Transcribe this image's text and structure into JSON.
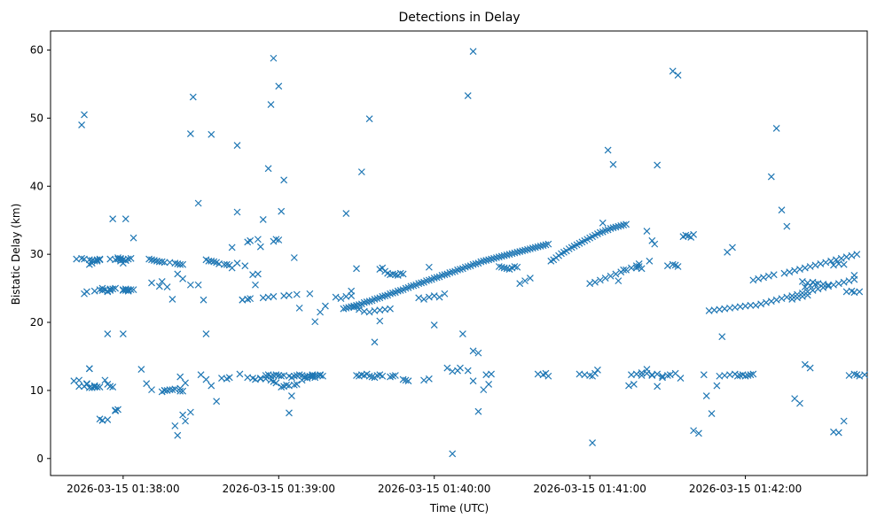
{
  "chart_data": {
    "type": "scatter",
    "title": "Detections in Delay",
    "xlabel": "Time (UTC)",
    "ylabel": "Bistatic Delay (km)",
    "x_tick_labels": [
      "2026-03-15 01:38:00",
      "2026-03-15 01:39:00",
      "2026-03-15 01:40:00",
      "2026-03-15 01:41:00",
      "2026-03-15 01:42:00"
    ],
    "x_tick_values_s": [
      0,
      60,
      120,
      180,
      240
    ],
    "y_ticks": [
      0,
      10,
      20,
      30,
      40,
      50,
      60
    ],
    "xlim_s": [
      -28,
      287
    ],
    "ylim": [
      -2.5,
      62.8
    ],
    "marker": "x",
    "color": "#1f77b4",
    "grid": false,
    "series": [
      {
        "x": [
          -16,
          -15,
          -13,
          -12,
          -10,
          -11,
          -14,
          -9,
          -8,
          -7,
          -6,
          -6,
          -5,
          -4,
          -3,
          -2,
          -1,
          0,
          1,
          2,
          2,
          3,
          4,
          -15,
          -14,
          -13,
          -11,
          -9,
          -8,
          -7,
          -6,
          -5,
          -4,
          -3,
          -2,
          0,
          1,
          0,
          -1,
          10,
          11,
          12,
          13,
          14,
          15,
          16,
          18,
          20,
          21,
          22,
          23,
          -2,
          -1,
          0,
          1,
          2,
          3,
          -19,
          -17,
          -10,
          -12,
          -8,
          -6,
          -3,
          0,
          1,
          2,
          -18,
          -16,
          -15,
          -13,
          -12,
          -10,
          -9,
          -5,
          0,
          1,
          -11,
          -9,
          -8,
          -5,
          -3,
          11,
          14,
          16,
          19,
          20,
          21,
          22,
          23,
          15,
          17,
          19,
          21,
          23,
          26,
          29,
          32,
          33,
          34,
          35,
          36,
          37,
          39,
          40,
          41,
          44,
          45,
          47,
          48,
          50,
          51,
          53,
          16,
          17,
          15,
          18,
          20,
          22,
          23,
          24,
          26,
          26,
          27,
          29,
          31,
          32,
          34,
          36,
          38,
          40,
          41,
          50,
          51,
          52,
          53,
          54,
          55,
          56,
          57,
          58,
          59,
          60,
          61,
          62,
          64,
          65,
          66,
          67,
          68,
          69,
          70,
          71,
          72,
          73,
          74,
          75,
          76,
          77,
          61,
          63,
          65,
          67,
          69,
          73,
          73,
          74,
          53,
          55,
          57,
          58,
          59,
          60,
          62,
          64,
          66,
          70,
          71,
          76,
          46,
          48,
          49,
          54,
          56,
          58,
          62,
          64,
          67,
          72,
          42,
          48,
          49,
          52,
          44,
          57,
          61,
          60,
          58,
          59,
          82,
          84,
          86,
          88,
          89,
          91,
          93,
          95,
          97,
          99,
          101,
          103,
          85,
          86,
          87,
          88,
          89,
          90,
          91,
          92,
          93,
          94,
          95,
          96,
          97,
          98,
          99,
          100,
          101,
          102,
          103,
          104,
          105,
          106,
          107,
          108,
          109,
          110,
          111,
          112,
          113,
          114,
          115,
          116,
          117,
          118,
          119,
          120,
          121,
          122,
          123,
          124,
          125,
          126,
          127,
          128,
          129,
          130,
          131,
          132,
          133,
          134,
          135,
          136,
          137,
          138,
          139,
          140,
          141,
          142,
          143,
          144,
          145,
          146,
          147,
          148,
          149,
          150,
          151,
          152,
          153,
          154,
          155,
          156,
          157,
          158,
          159,
          160,
          161,
          162,
          163,
          164,
          165,
          166,
          167,
          168,
          169,
          170,
          171,
          172,
          173,
          174,
          175,
          176,
          177,
          178,
          179,
          180,
          181,
          182,
          183,
          184,
          185,
          186,
          187,
          188,
          189,
          190,
          191,
          192,
          193,
          194,
          90,
          91,
          92,
          93,
          94,
          95,
          96,
          97,
          98,
          99,
          100,
          99,
          100,
          101,
          102,
          103,
          104,
          105,
          106,
          107,
          108,
          103,
          104,
          105,
          108,
          109,
          110,
          116,
          118,
          114,
          116,
          118,
          120,
          125,
          127,
          129,
          131,
          133,
          135,
          137,
          139,
          141,
          145,
          146,
          147,
          148,
          149,
          150,
          151,
          152,
          153,
          155,
          157,
          160,
          162,
          163,
          164,
          176,
          178,
          180,
          181,
          182,
          180,
          182,
          184,
          186,
          188,
          190,
          192,
          194,
          196,
          198,
          199,
          196,
          198,
          200,
          202,
          204,
          206,
          208,
          210,
          206,
          198,
          199,
          200,
          210,
          212,
          213,
          214,
          216,
          217,
          218,
          219,
          220,
          212,
          214,
          195,
          197,
          181,
          183,
          202,
          203,
          204,
          205,
          244,
          246,
          248,
          250,
          252,
          254,
          256,
          258,
          260,
          262,
          264,
          266,
          268,
          270,
          272,
          274,
          276,
          278,
          280,
          282,
          226,
          228,
          230,
          232,
          234,
          236,
          238,
          240,
          242,
          258,
          260,
          262,
          264,
          230,
          232,
          234,
          236,
          237,
          238,
          239,
          240,
          241,
          242,
          243,
          243,
          245,
          247,
          249,
          251,
          255,
          257,
          259,
          261,
          263,
          265,
          267,
          269,
          271,
          273,
          275,
          277,
          279,
          281,
          283,
          263,
          265,
          267,
          279,
          281,
          282,
          280,
          282,
          283,
          284,
          274,
          276,
          278,
          262,
          264,
          266,
          268,
          270,
          272,
          250,
          252,
          254,
          256,
          259,
          261,
          263,
          265,
          274,
          276,
          278,
          225,
          227,
          229,
          231,
          233,
          235,
          220,
          222,
          224,
          211,
          213,
          215,
          200,
          202,
          204,
          206,
          208,
          185,
          187,
          189,
          191,
          193,
          135,
          137,
          140,
          142,
          127,
          130,
          133,
          135,
          118,
          120,
          122,
          124,
          92,
          95,
          97,
          99,
          86,
          88,
          90,
          74,
          76,
          78,
          64,
          66,
          68,
          56,
          58,
          60,
          62,
          42,
          44,
          46,
          48,
          30,
          32,
          34,
          20,
          22,
          24,
          7,
          9,
          11,
          -15,
          -13,
          -11,
          -9,
          -6,
          -4,
          -17,
          -14,
          -13,
          -11,
          2,
          4,
          282,
          284,
          286
        ],
        "y": [
          49,
          50.5,
          28.5,
          28.7,
          29,
          29,
          24.5,
          29.2,
          25,
          24.8,
          24.6,
          24.5,
          24.7,
          24.9,
          29.2,
          29.3,
          29.4,
          29.2,
          29.1,
          29.3,
          24.8,
          29.4,
          32.4,
          24.2,
          11,
          13.2,
          10.5,
          5.8,
          5.6,
          11.5,
          10.9,
          10.6,
          10.5,
          7,
          7.2,
          18.3,
          35.2,
          28.7,
          29,
          29.3,
          29.2,
          29.1,
          29,
          28.9,
          28.9,
          28.8,
          28.8,
          28.7,
          28.6,
          28.5,
          28.5,
          29.5,
          29.3,
          24.8,
          24.7,
          24.6,
          24.8,
          11.4,
          10.6,
          10.5,
          10.4,
          5.6,
          5.7,
          7.1,
          24.7,
          24.9,
          24.8,
          29.3,
          29.4,
          29.3,
          29.2,
          29.1,
          29.2,
          29.3,
          29.3,
          29.2,
          29.1,
          24.6,
          24.8,
          24.7,
          24.9,
          25,
          25.8,
          25.3,
          10,
          10.1,
          10.2,
          3.4,
          9.9,
          9.9,
          26,
          25.2,
          23.4,
          27.1,
          26.4,
          25.5,
          25.5,
          29.2,
          29,
          29,
          28.9,
          28.8,
          28.6,
          28.5,
          28.5,
          28.4,
          28.7,
          12.4,
          28.3,
          11.9,
          11.8,
          11.6,
          11.7,
          10,
          10,
          9.8,
          10.1,
          10.2,
          10.3,
          6.4,
          5.5,
          6.8,
          47.7,
          53.1,
          37.5,
          23.3,
          18.3,
          47.6,
          8.4,
          11.8,
          11.7,
          11.9,
          27,
          25.5,
          27.1,
          31.1,
          35.1,
          12.2,
          12.3,
          12.1,
          12.2,
          12.3,
          12.2,
          12.1,
          12.2,
          12.1,
          11.9,
          12.1,
          12.2,
          12.3,
          12.2,
          11.9,
          11.8,
          12.1,
          12,
          11.9,
          12.2,
          12.3,
          12.1,
          10.5,
          10.8,
          9.2,
          10.9,
          11.5,
          12.2,
          12.3,
          12.2,
          11.8,
          11.7,
          11.5,
          11.3,
          11.1,
          12.2,
          10.6,
          10.7,
          10.8,
          12,
          12.1,
          12.2,
          23.3,
          23.4,
          23.5,
          23.6,
          23.7,
          23.8,
          23.9,
          24,
          24.1,
          24.2,
          28,
          31.8,
          32,
          32.2,
          46,
          52,
          36.3,
          32.1,
          31.9,
          32.2,
          23.7,
          23.5,
          23.8,
          23.9,
          22.2,
          21.9,
          21.6,
          21.5,
          21.7,
          21.8,
          21.9,
          22,
          22,
          22.1,
          22.2,
          22.3,
          22.4,
          22.5,
          22.6,
          22.7,
          22.9,
          23,
          23.1,
          23.2,
          23.4,
          23.5,
          23.6,
          23.8,
          23.9,
          24,
          24.2,
          24.3,
          24.4,
          24.6,
          24.7,
          24.8,
          25,
          25.1,
          25.3,
          25.4,
          25.5,
          25.7,
          25.8,
          25.9,
          26.1,
          26.2,
          26.3,
          26.5,
          26.6,
          26.7,
          26.9,
          27,
          27.1,
          27.3,
          27.4,
          27.5,
          27.7,
          27.8,
          27.9,
          28.1,
          28.2,
          28.3,
          28.5,
          28.6,
          28.7,
          28.9,
          29,
          29.1,
          29.2,
          29.3,
          29.4,
          29.5,
          29.6,
          29.7,
          29.8,
          29.9,
          30,
          30.1,
          30.2,
          30.3,
          30.4,
          30.5,
          30.6,
          30.7,
          30.8,
          30.9,
          31,
          31.1,
          31.2,
          31.3,
          31.4,
          31.5,
          29,
          29.2,
          29.5,
          29.8,
          30.1,
          30.3,
          30.5,
          30.8,
          31,
          31.2,
          31.4,
          31.6,
          31.8,
          32,
          32.2,
          32.4,
          32.6,
          32.8,
          33,
          33.2,
          33.3,
          33.5,
          33.6,
          33.8,
          33.9,
          34,
          34.1,
          34.2,
          34.3,
          34.4,
          12.2,
          12.1,
          12.3,
          12.2,
          12.4,
          12.1,
          12,
          11.9,
          12.2,
          12.3,
          12.1,
          27.8,
          28,
          27.5,
          27.2,
          27,
          27.1,
          27,
          26.9,
          27.2,
          27.1,
          12,
          12.1,
          12.2,
          11.6,
          11.5,
          11.4,
          11.5,
          11.7,
          23.6,
          23.4,
          23.7,
          23.9,
          13.3,
          12.8,
          12.9,
          18.3,
          12.9,
          11.4,
          15.5,
          10.1,
          10.9,
          28.2,
          28.1,
          28,
          27.9,
          27.8,
          28,
          28.2,
          28.1,
          25.7,
          26.1,
          26.5,
          12.4,
          12.3,
          12.5,
          12.1,
          12.4,
          12.3,
          12.2,
          12.1,
          12.5,
          25.7,
          25.9,
          26.2,
          26.5,
          26.8,
          27.1,
          27.4,
          27.7,
          28,
          28.3,
          28.6,
          12.3,
          12.4,
          12.2,
          12.5,
          12.3,
          12.4,
          12.1,
          12.2,
          43.1,
          28,
          28.2,
          27.9,
          28.3,
          28.5,
          28.4,
          28.2,
          32.6,
          32.8,
          32.7,
          32.5,
          32.9,
          56.9,
          56.3,
          10.7,
          10.9,
          2.3,
          13,
          33.4,
          29,
          32,
          31.5,
          22.5,
          22.7,
          22.9,
          23.1,
          23.3,
          23.5,
          23.7,
          23.9,
          24.1,
          24.3,
          24.5,
          24.7,
          24.9,
          25.1,
          25.3,
          25.5,
          25.7,
          25.9,
          26.1,
          26.3,
          21.7,
          21.8,
          21.9,
          22,
          22.1,
          22.2,
          22.3,
          22.4,
          22.5,
          23.4,
          23.6,
          23.8,
          24,
          12.1,
          12.2,
          12.3,
          12.4,
          12.1,
          12.2,
          12.3,
          12.1,
          12.2,
          12.3,
          12.4,
          26.2,
          26.4,
          26.6,
          26.8,
          27,
          27.2,
          27.4,
          27.6,
          27.8,
          28,
          28.2,
          28.4,
          28.6,
          28.8,
          29,
          29.2,
          29.4,
          29.6,
          29.8,
          30,
          25.2,
          25.4,
          25.6,
          24.5,
          24.6,
          24.4,
          12.2,
          12.4,
          12.3,
          12.1,
          28.4,
          28.6,
          28.5,
          26,
          25.8,
          25.9,
          25.7,
          25.6,
          25.5,
          41.4,
          48.5,
          36.5,
          34.1,
          8.8,
          8.1,
          13.8,
          13.3,
          3.9,
          3.8,
          5.5,
          9.2,
          6.6,
          10.7,
          17.9,
          30.3,
          31,
          4.1,
          3.7,
          12.3,
          12.3,
          12.5,
          11.8,
          12.6,
          13.1,
          12.2,
          10.6,
          11.9,
          34.6,
          45.3,
          43.2,
          26.1,
          27.7,
          15.8,
          6.9,
          12.3,
          12.4,
          0.7,
          13.3,
          53.3,
          59.8,
          28.1,
          19.6,
          23.7,
          24.2,
          42.1,
          49.9,
          17.1,
          20.2,
          36,
          24.6,
          27.9,
          20.1,
          21.5,
          22.4,
          6.7,
          29.5,
          22.1,
          42.6,
          58.8,
          54.7,
          40.9,
          31,
          36.2,
          23.3,
          23.4,
          12.3,
          11.6,
          10.7,
          4.8,
          12,
          11.1,
          13.1,
          11,
          10.1,
          10.6,
          10.4,
          10.7,
          10.5,
          18.3,
          35.2,
          11.5,
          10.9,
          13.2,
          10.5,
          24.6,
          24.8,
          26.9,
          24.5,
          12.3
        ]
      }
    ]
  }
}
